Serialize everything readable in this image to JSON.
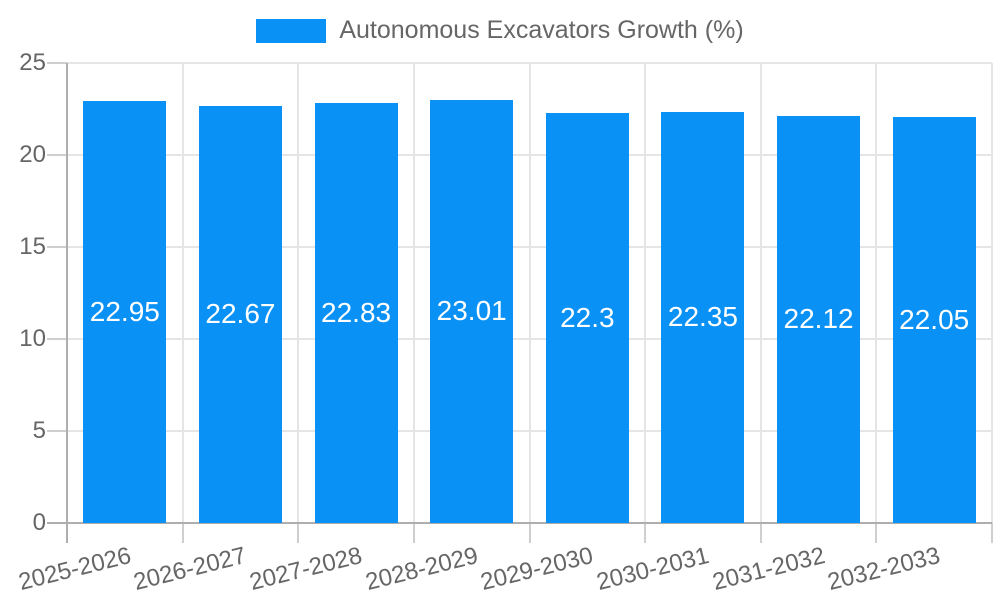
{
  "chart_data": {
    "type": "bar",
    "legend": "Autonomous Excavators Growth (%)",
    "categories": [
      "2025-2026",
      "2026-2027",
      "2027-2028",
      "2028-2029",
      "2029-2030",
      "2030-2031",
      "2031-2032",
      "2032-2033"
    ],
    "values": [
      22.95,
      22.67,
      22.83,
      23.01,
      22.3,
      22.35,
      22.12,
      22.05
    ],
    "value_labels": [
      "22.95",
      "22.67",
      "22.83",
      "23.01",
      "22.3",
      "22.35",
      "22.12",
      "22.05"
    ],
    "title": "",
    "xlabel": "",
    "ylabel": "",
    "ylim": [
      0,
      25
    ],
    "yticks": [
      0,
      5,
      10,
      15,
      20,
      25
    ],
    "grid": true,
    "legend_position": "top-center",
    "colors": {
      "bar": "#0a91f6",
      "bar_label": "#ffffff",
      "axis_text": "#666666",
      "grid_line": "#e5e5e5",
      "axis_line": "#aeaeae",
      "tick_mark": "#cfcfcf",
      "background": "#ffffff"
    }
  }
}
